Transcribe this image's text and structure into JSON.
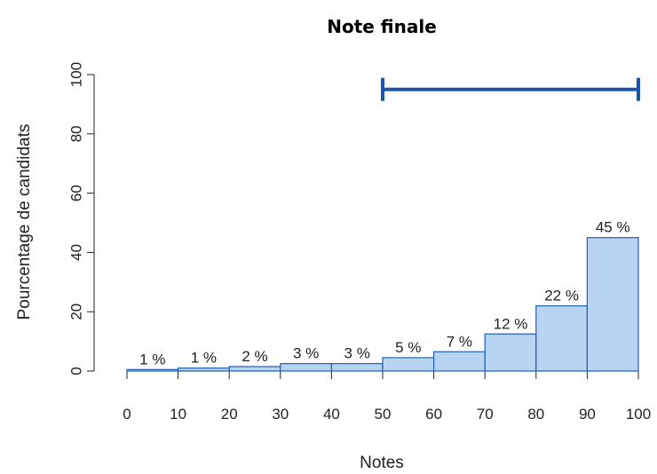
{
  "chart_data": {
    "type": "bar",
    "title": "Note finale",
    "xlabel": "Notes",
    "ylabel": "Pourcentage de candidats",
    "bin_edges": [
      0,
      10,
      20,
      30,
      40,
      50,
      60,
      70,
      80,
      90,
      100
    ],
    "values": [
      0.5,
      1,
      1.5,
      2.5,
      2.5,
      4.5,
      6.5,
      12.5,
      22,
      45
    ],
    "data_labels": [
      "1 %",
      "1 %",
      "2 %",
      "3 %",
      "3 %",
      "5 %",
      "7 %",
      "12 %",
      "22 %",
      "45 %"
    ],
    "x_ticks": [
      0,
      10,
      20,
      30,
      40,
      50,
      60,
      70,
      80,
      90,
      100
    ],
    "y_ticks": [
      0,
      20,
      40,
      60,
      80,
      100
    ],
    "xlim": [
      0,
      100
    ],
    "ylim": [
      0,
      100
    ],
    "range_bar": {
      "from": 50,
      "to": 100,
      "level": 95
    },
    "grid": false,
    "colors": {
      "bar_fill": "#b7d4f3",
      "bar_stroke": "#1f5fb3",
      "range_bar": "#1a55a8",
      "axis": "#222222"
    }
  }
}
